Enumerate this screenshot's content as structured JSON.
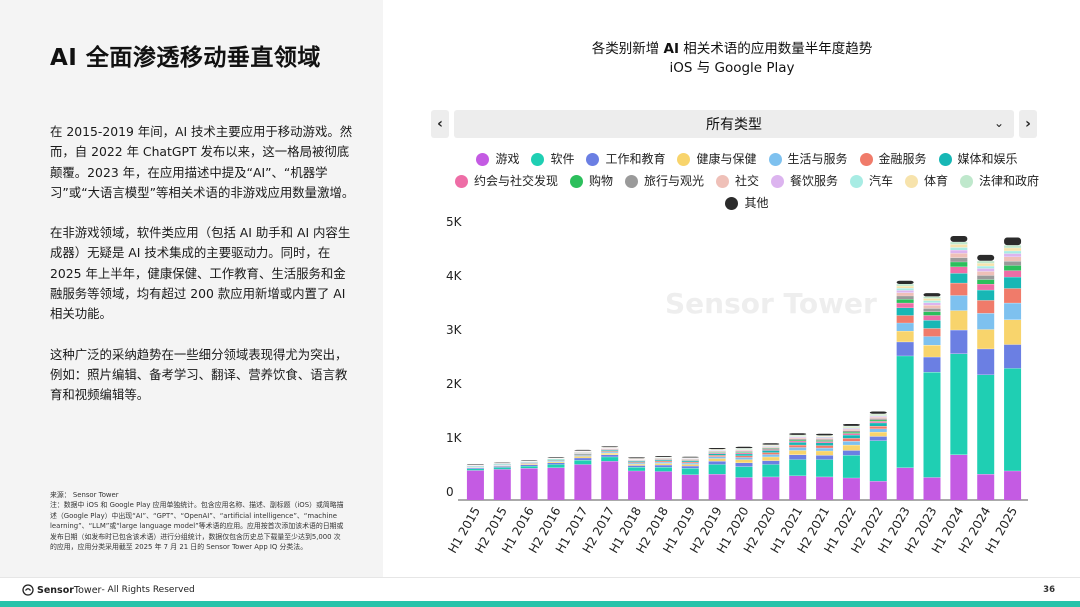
{
  "page": {
    "title": "AI 全面渗透移动垂直领域",
    "paragraphs": [
      "在 2015-2019 年间，AI 技术主要应用于移动游戏。然而，自 2022 年 ChatGPT 发布以来，这一格局被彻底颠覆。2023 年，在应用描述中提及“AI”、“机器学习”或“大语言模型”等相关术语的非游戏应用数量激增。",
      "在非游戏领域，软件类应用（包括 AI 助手和 AI 内容生成器）无疑是 AI 技术集成的主要驱动力。同时，在 2025 年上半年，健康保健、工作教育、生活服务和金融服务等领域，均有超过 200 款应用新增或内置了 AI 相关功能。",
      "这种广泛的采纳趋势在一些细分领域表现得尤为突出，例如：照片编辑、备考学习、翻译、营养饮食、语言教育和视频编辑等。"
    ],
    "source_lines": [
      "来源： Sensor Tower",
      "注：数据中 iOS 和 Google Play 应用单独统计。包含应用名称、描述、副标题（iOS）或简略描述（Google Play）中出现“AI”、“GPT”、“OpenAI”、“artificial intelligence”、“machine learning”、“LLM”或“large language model”等术语的应用。应用按首次添加该术语的日期或发布日期（如发布时已包含该术语）进行分组统计，数据仅包含历史总下载量至少达到5,000 次的应用，应用分类采用截至 2025 年 7 月 21 日的 Sensor Tower App IQ 分类法。"
    ],
    "footer_brand": "Sensor",
    "footer_brand2": "Tower",
    "footer_rights": " - All Rights Reserved",
    "page_number": "36"
  },
  "chart_controls": {
    "prev_icon": "‹",
    "next_icon": "›",
    "selected_category": "所有类型",
    "dropdown_icon": "⌄"
  },
  "chart_title_prefix": "各类别新增",
  "chart_title_bold": "AI",
  "chart_title_suffix": "相关术语的应用数量半年度趋势",
  "chart_subtitle": "iOS 与 Google Play",
  "watermark_text": "Sensor Tower",
  "legend_rows": [
    [
      0,
      1,
      2,
      3,
      4,
      5,
      6
    ],
    [
      7,
      8,
      9,
      10,
      11,
      12,
      13,
      14
    ],
    [
      15
    ]
  ],
  "chart_data": {
    "type": "bar",
    "stacked": true,
    "title": "各类别新增 AI 相关术语的应用数量半年度趋势",
    "subtitle": "iOS 与 Google Play",
    "ylim": [
      0,
      5000
    ],
    "yticks": [
      0,
      1000,
      2000,
      3000,
      4000,
      5000
    ],
    "ytick_labels": [
      "0",
      "1K",
      "2K",
      "3K",
      "4K",
      "5K"
    ],
    "categories": [
      "H1 2015",
      "H2 2015",
      "H1 2016",
      "H2 2016",
      "H1 2017",
      "H2 2017",
      "H1 2018",
      "H2 2018",
      "H1 2019",
      "H2 2019",
      "H1 2020",
      "H2 2020",
      "H1 2021",
      "H2 2021",
      "H1 2022",
      "H2 2022",
      "H1 2023",
      "H2 2023",
      "H1 2024",
      "H2 2024",
      "H1 2025"
    ],
    "series": [
      {
        "name": "游戏",
        "color": "#c45be3",
        "values": [
          550,
          570,
          590,
          600,
          660,
          720,
          540,
          530,
          470,
          480,
          420,
          430,
          450,
          430,
          410,
          350,
          600,
          420,
          840,
          480,
          540
        ]
      },
      {
        "name": "软件",
        "color": "#1fcfb3",
        "values": [
          30,
          35,
          40,
          60,
          80,
          80,
          70,
          80,
          120,
          180,
          200,
          230,
          300,
          320,
          420,
          750,
          2070,
          1950,
          1870,
          1840,
          1900
        ]
      },
      {
        "name": "工作和教育",
        "color": "#6b7fe3",
        "values": [
          20,
          20,
          25,
          30,
          40,
          40,
          30,
          40,
          40,
          60,
          70,
          70,
          90,
          80,
          90,
          80,
          260,
          280,
          440,
          480,
          440
        ]
      },
      {
        "name": "健康与保健",
        "color": "#f8d46c",
        "values": [
          10,
          10,
          15,
          20,
          30,
          30,
          25,
          30,
          30,
          50,
          60,
          70,
          80,
          80,
          100,
          80,
          200,
          220,
          360,
          360,
          460
        ]
      },
      {
        "name": "生活与服务",
        "color": "#7ec1ef",
        "values": [
          10,
          10,
          10,
          15,
          20,
          20,
          20,
          25,
          25,
          35,
          40,
          45,
          55,
          55,
          70,
          60,
          150,
          160,
          280,
          300,
          310
        ]
      },
      {
        "name": "金融服务",
        "color": "#f07b6a",
        "values": [
          5,
          5,
          10,
          10,
          15,
          15,
          15,
          20,
          20,
          25,
          30,
          35,
          45,
          45,
          55,
          50,
          140,
          150,
          230,
          240,
          270
        ]
      },
      {
        "name": "媒体和娱乐",
        "color": "#17b7b5",
        "values": [
          10,
          10,
          10,
          15,
          15,
          20,
          20,
          20,
          20,
          30,
          35,
          40,
          50,
          50,
          60,
          60,
          140,
          150,
          180,
          190,
          210
        ]
      },
      {
        "name": "约会与社交发现",
        "color": "#ee6da6",
        "values": [
          5,
          5,
          5,
          5,
          10,
          10,
          10,
          10,
          10,
          15,
          20,
          20,
          25,
          25,
          30,
          30,
          90,
          90,
          120,
          110,
          120
        ]
      },
      {
        "name": "购物",
        "color": "#2cbf5c",
        "values": [
          3,
          3,
          4,
          5,
          8,
          8,
          8,
          8,
          10,
          12,
          15,
          15,
          20,
          20,
          25,
          25,
          70,
          70,
          90,
          85,
          95
        ]
      },
      {
        "name": "旅行与观光",
        "color": "#9a9a9a",
        "values": [
          3,
          3,
          4,
          5,
          8,
          8,
          8,
          8,
          10,
          12,
          15,
          15,
          20,
          20,
          25,
          25,
          60,
          60,
          80,
          75,
          80
        ]
      },
      {
        "name": "社交",
        "color": "#efc0b8",
        "values": [
          3,
          3,
          3,
          5,
          8,
          8,
          8,
          8,
          10,
          12,
          15,
          15,
          20,
          20,
          25,
          25,
          60,
          60,
          80,
          75,
          80
        ]
      },
      {
        "name": "餐饮服务",
        "color": "#dcb4ef",
        "values": [
          2,
          2,
          2,
          3,
          5,
          5,
          5,
          5,
          6,
          8,
          10,
          10,
          15,
          15,
          18,
          18,
          45,
          45,
          60,
          55,
          60
        ]
      },
      {
        "name": "汽车",
        "color": "#a8ece4",
        "values": [
          2,
          2,
          2,
          3,
          5,
          5,
          5,
          5,
          5,
          8,
          10,
          10,
          12,
          12,
          15,
          15,
          40,
          40,
          50,
          45,
          50
        ]
      },
      {
        "name": "体育",
        "color": "#f7e3ac",
        "values": [
          2,
          2,
          2,
          3,
          5,
          5,
          5,
          5,
          5,
          8,
          10,
          10,
          12,
          12,
          15,
          15,
          40,
          40,
          55,
          50,
          55
        ]
      },
      {
        "name": "法律和政府",
        "color": "#bfe8cc",
        "values": [
          2,
          2,
          2,
          3,
          5,
          5,
          5,
          5,
          5,
          8,
          10,
          10,
          12,
          12,
          15,
          15,
          35,
          35,
          45,
          45,
          50
        ]
      },
      {
        "name": "其他",
        "color": "#2b2b2b",
        "values": [
          10,
          10,
          10,
          12,
          15,
          15,
          15,
          15,
          15,
          20,
          25,
          25,
          30,
          30,
          35,
          40,
          60,
          60,
          110,
          110,
          140
        ]
      }
    ]
  }
}
